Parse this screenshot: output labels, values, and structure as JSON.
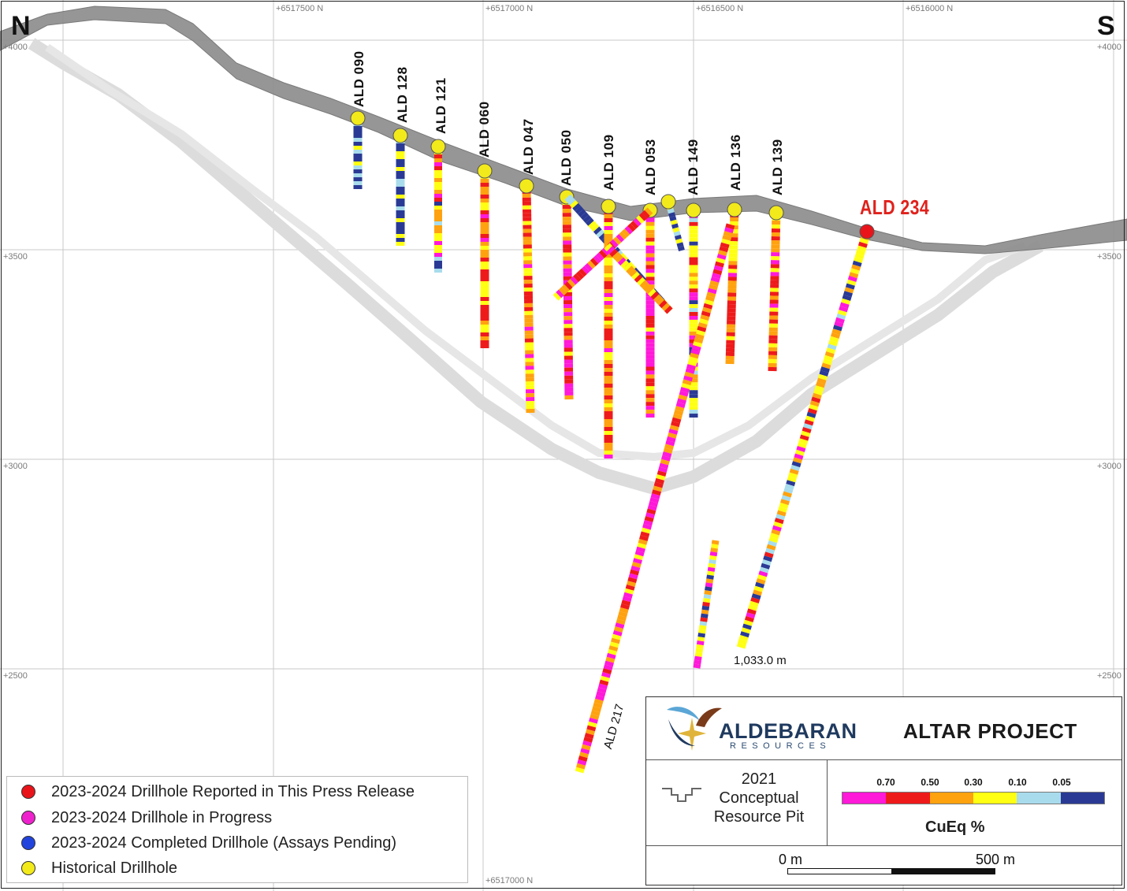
{
  "section": {
    "direction_left": "N",
    "direction_right": "S",
    "northings": [
      "+6517500 N",
      "+6517000 N",
      "+6516500 N",
      "+6516000 N"
    ],
    "northing_bottom": "+6517000 N",
    "elevations_left": [
      "+4000",
      "+3500",
      "+3000",
      "+2500"
    ],
    "elevations_right": [
      "+4000",
      "+3500",
      "+3000",
      "+2500"
    ]
  },
  "drillholes": {
    "labels": [
      "ALD 090",
      "ALD 128",
      "ALD 121",
      "ALD 060",
      "ALD 047",
      "ALD 050",
      "ALD 109",
      "ALD 053",
      "ALD 149",
      "ALD 136",
      "ALD 139"
    ],
    "featured": "ALD 234",
    "featured_depth": "1,033.0 m",
    "ald217": "ALD 217"
  },
  "legend": {
    "items": [
      {
        "label": "2023-2024 Drillhole Reported in This Press Release",
        "color": "#e8141a"
      },
      {
        "label": "2023-2024 Drillhole in Progress",
        "color": "#ee22cc"
      },
      {
        "label": "2023-2024 Completed Drillhole (Assays Pending)",
        "color": "#2244dd"
      },
      {
        "label": "Historical Drillhole",
        "color": "#f2ea1a"
      }
    ]
  },
  "title_block": {
    "logo_name": "ALDEBARAN",
    "logo_sub": "RESOURCES",
    "project": "ALTAR PROJECT",
    "pit_year": "2021",
    "pit_label": "Conceptual Resource Pit",
    "colorbar_title": "CuEq %",
    "colorbar_ticks": [
      "0.70",
      "0.50",
      "0.30",
      "0.10",
      "0.05"
    ],
    "colorbar_colors": [
      "#ff19d8",
      "#ee1b1b",
      "#ffa20f",
      "#ffff14",
      "#a8dcec",
      "#2a3a94"
    ],
    "scale_start": "0 m",
    "scale_end": "500 m"
  }
}
